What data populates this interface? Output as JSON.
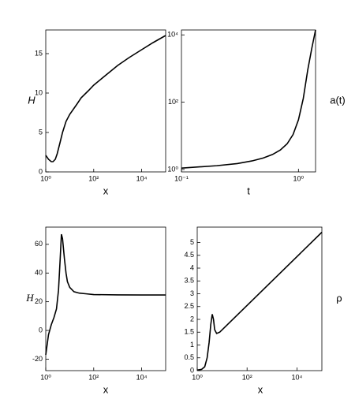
{
  "chart_data": [
    {
      "type": "line",
      "xlabel": "x",
      "ylabel": "H",
      "xlog": true,
      "ylog": false,
      "xlim": [
        1,
        100000
      ],
      "xticks": [
        {
          "value": 1,
          "label": "10⁰"
        },
        {
          "value": 100,
          "label": "10²"
        },
        {
          "value": 10000,
          "label": "10⁴"
        }
      ],
      "ylim": [
        0,
        18
      ],
      "yticks": [
        0,
        5,
        10,
        15
      ],
      "x": [
        1,
        1.3,
        1.7,
        2,
        2.5,
        3,
        4,
        5,
        7,
        10,
        20,
        30,
        60,
        100,
        300,
        1000,
        3000,
        10000,
        30000,
        100000
      ],
      "series": [
        {
          "color": "#000000",
          "values": [
            2.1,
            1.6,
            1.3,
            1.3,
            1.6,
            2.3,
            3.8,
            5.0,
            6.4,
            7.3,
            8.6,
            9.4,
            10.3,
            11.0,
            12.2,
            13.5,
            14.5,
            15.5,
            16.4,
            17.3
          ]
        }
      ]
    },
    {
      "type": "line",
      "xlabel": "t",
      "ylabel": "a(t)",
      "xlog": true,
      "ylog": true,
      "xlim": [
        0.1,
        1.4
      ],
      "xticks": [
        {
          "value": 0.1,
          "label": "10⁻¹"
        },
        {
          "value": 1,
          "label": "10⁰"
        }
      ],
      "ylim": [
        0.85,
        14000
      ],
      "yticks": [
        {
          "value": 1,
          "label": "10⁰"
        },
        {
          "value": 100,
          "label": "10²"
        },
        {
          "value": 10000,
          "label": "10⁴"
        }
      ],
      "x": [
        0.1,
        0.2,
        0.3,
        0.4,
        0.5,
        0.6,
        0.7,
        0.8,
        0.9,
        1.0,
        1.1,
        1.2,
        1.3,
        1.4
      ],
      "series": [
        {
          "color": "#000000",
          "values": [
            1.1,
            1.3,
            1.5,
            1.8,
            2.2,
            2.8,
            3.8,
            5.8,
            11,
            30,
            130,
            900,
            4000,
            14000
          ]
        }
      ]
    },
    {
      "type": "line",
      "xlabel": "x",
      "ylabel": "H",
      "xlog": true,
      "ylog": false,
      "xlim": [
        1,
        100000
      ],
      "xticks": [
        {
          "value": 1,
          "label": "10⁰"
        },
        {
          "value": 100,
          "label": "10²"
        },
        {
          "value": 10000,
          "label": "10⁴"
        }
      ],
      "ylim": [
        -28,
        72
      ],
      "yticks": [
        -20,
        0,
        20,
        40,
        60
      ],
      "x": [
        1,
        1.3,
        1.7,
        2.2,
        2.8,
        3.4,
        4,
        4.5,
        5,
        6,
        7,
        8,
        10,
        15,
        25,
        50,
        100,
        1000,
        10000,
        100000
      ],
      "series": [
        {
          "color": "#000000",
          "values": [
            -17,
            -3,
            4,
            9,
            15,
            28,
            50,
            67,
            64,
            50,
            40,
            34,
            30,
            27,
            26,
            25.5,
            25,
            24.8,
            24.7,
            24.7
          ]
        }
      ]
    },
    {
      "type": "line",
      "xlabel": "x",
      "ylabel": "ρ",
      "xlog": true,
      "ylog": false,
      "xlim": [
        1,
        100000
      ],
      "xticks": [
        {
          "value": 1,
          "label": "10⁰"
        },
        {
          "value": 100,
          "label": "10²"
        },
        {
          "value": 10000,
          "label": "10⁴"
        }
      ],
      "ylim": [
        0,
        5.6
      ],
      "yticks": [
        0,
        0.5,
        1,
        1.5,
        2,
        2.5,
        3,
        3.5,
        4,
        4.5,
        5
      ],
      "x": [
        1,
        1.5,
        2,
        2.5,
        3,
        3.5,
        4,
        4.5,
        5,
        6,
        8,
        100000
      ],
      "series": [
        {
          "color": "#000000",
          "values": [
            0.02,
            0.05,
            0.15,
            0.5,
            1.1,
            1.8,
            2.2,
            2.0,
            1.6,
            1.45,
            1.5,
            5.4
          ]
        }
      ]
    }
  ]
}
